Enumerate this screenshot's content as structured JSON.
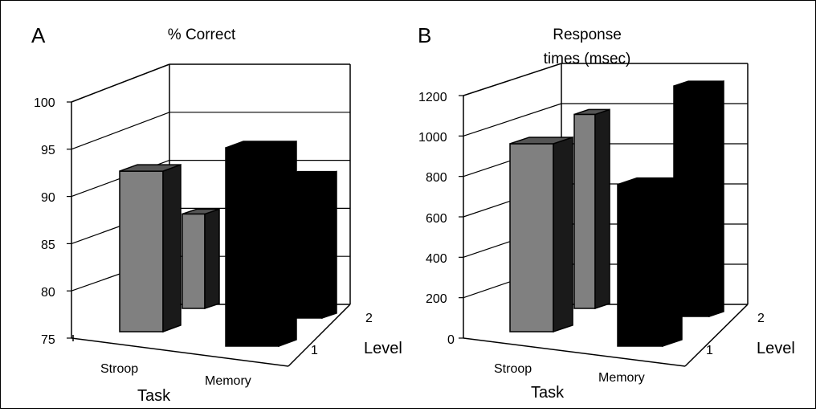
{
  "chart_data": [
    {
      "type": "bar",
      "panel": "A",
      "title": "% Correct",
      "xlabel": "Task",
      "zlabel": "Level",
      "categories": [
        "Stroop",
        "Memory"
      ],
      "levels": [
        "1",
        "2"
      ],
      "ylim": [
        75,
        100
      ],
      "yticks": [
        "75",
        "80",
        "85",
        "90",
        "95",
        "100"
      ],
      "series": [
        {
          "values": [
            92,
            96
          ]
        },
        {
          "values": [
            85,
            90
          ]
        }
      ],
      "colors": {
        "Stroop": "#808080",
        "Memory": "#000000"
      },
      "grid": true
    },
    {
      "type": "bar",
      "panel": "B",
      "title": "Response times (msec)",
      "title_lines": [
        "Response",
        "times (msec)"
      ],
      "xlabel": "Task",
      "zlabel": "Level",
      "categories": [
        "Stroop",
        "Memory"
      ],
      "levels": [
        "1",
        "2"
      ],
      "ylim": [
        0,
        1200
      ],
      "yticks": [
        "0",
        "200",
        "400",
        "600",
        "800",
        "1000",
        "1200"
      ],
      "series": [
        {
          "values": [
            930,
            800
          ]
        },
        {
          "values": [
            960,
            1140
          ]
        }
      ],
      "colors": {
        "Stroop": "#808080",
        "Memory": "#000000"
      },
      "grid": true
    }
  ]
}
